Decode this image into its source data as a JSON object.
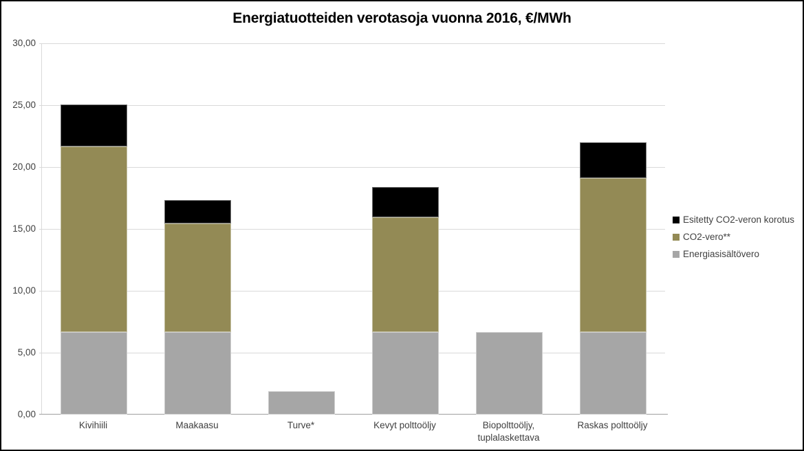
{
  "window": {
    "background": "#ffffff",
    "frame_border_color": "#000000"
  },
  "chart_data": {
    "type": "bar",
    "stacked": true,
    "title": "Energiatuotteiden verotasoja vuonna 2016, €/MWh",
    "unit": "€/MWh",
    "categories": [
      "Kivihiili",
      "Maakaasu",
      "Turve*",
      "Kevyt polttoöljy",
      "Biopolttoöljy,\ntuplalaskettava",
      "Raskas polttoöljy"
    ],
    "series": [
      {
        "name": "Energiasisältövero",
        "color": "#a6a6a6",
        "values": [
          6.65,
          6.65,
          1.9,
          6.65,
          6.65,
          6.65
        ]
      },
      {
        "name": "CO2-vero**",
        "color": "#938a55",
        "values": [
          15.0,
          8.8,
          0,
          9.3,
          0,
          12.45
        ]
      },
      {
        "name": "Esitetty CO2-veron korotus",
        "color": "#000000",
        "values": [
          3.4,
          1.9,
          0,
          2.45,
          0,
          2.9
        ]
      }
    ],
    "totals": [
      25.05,
      17.35,
      1.9,
      18.4,
      6.65,
      22.0
    ],
    "ylim": [
      0,
      30
    ],
    "y_tick_step": 5,
    "y_tick_labels": [
      "30,00",
      "25,00",
      "20,00",
      "15,00",
      "10,00",
      "5,00",
      "0,00"
    ],
    "grid": true,
    "legend_position": "right",
    "legend_order": [
      "Esitetty CO2-veron korotus",
      "CO2-vero**",
      "Energiasisältövero"
    ],
    "axis_text_color": "#404040",
    "gridline_color": "#d9d9d9",
    "axis_line_color": "#9f9f9f"
  }
}
